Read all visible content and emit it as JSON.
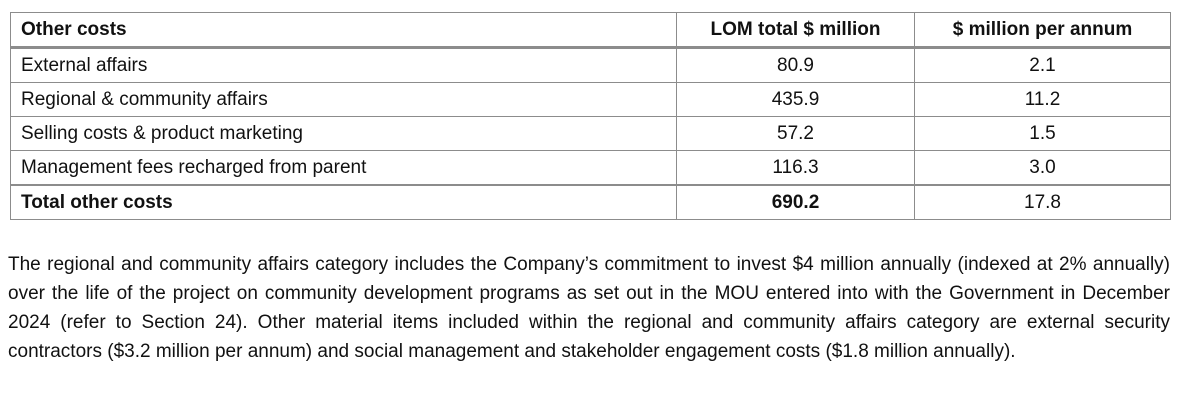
{
  "table": {
    "headers": [
      "Other costs",
      "LOM total $ million",
      "$ million per annum"
    ],
    "rows": [
      [
        "External affairs",
        "80.9",
        "2.1"
      ],
      [
        "Regional & community affairs",
        "435.9",
        "11.2"
      ],
      [
        "Selling costs & product marketing",
        "57.2",
        "1.5"
      ],
      [
        "Management fees recharged from parent",
        "116.3",
        "3.0"
      ]
    ],
    "total": [
      "Total other costs",
      "690.2",
      "17.8"
    ]
  },
  "note": "The regional and community affairs category includes the Company’s commitment to invest $4 million annually (indexed at 2% annually) over the life of the project on community development programs as set out in the MOU entered into with the Government in December 2024 (refer to Section 24). Other material items included within the regional and community affairs category are external security contractors ($3.2 million per annum) and social management and stakeholder engagement costs ($1.8 million annually)."
}
